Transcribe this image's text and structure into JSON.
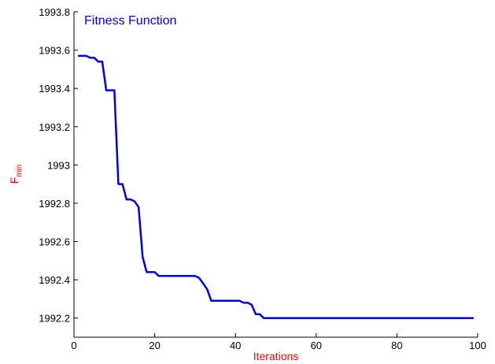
{
  "chart_data": {
    "type": "line",
    "title": "",
    "xlabel": "Iterations",
    "ylabel": {
      "main": "F",
      "subscript": "min"
    },
    "xlim": [
      0,
      100
    ],
    "ylim": [
      1992.1,
      1993.8
    ],
    "x_ticks": [
      0,
      20,
      40,
      60,
      80,
      100
    ],
    "x_tick_labels": [
      "0",
      "20",
      "40",
      "60",
      "80",
      "100"
    ],
    "y_ticks": [
      1992.2,
      1992.4,
      1992.6,
      1992.8,
      1993.0,
      1993.2,
      1993.4,
      1993.6,
      1993.8
    ],
    "y_tick_labels": [
      "1992.2",
      "1992.4",
      "1992.6",
      "1992.8",
      "1993",
      "1993.2",
      "1993.4",
      "1993.6",
      "1993.8"
    ],
    "grid": false,
    "legend_placement": "top-left",
    "series": [
      {
        "name": "Fitness Function",
        "color": "#0000ee",
        "x": [
          1,
          3,
          4,
          5,
          6,
          7,
          8,
          9,
          10,
          11,
          12,
          13,
          14,
          15,
          16,
          17,
          18,
          19,
          20,
          21,
          29,
          30,
          31,
          32,
          33,
          34,
          40,
          41,
          42,
          43,
          44,
          45,
          46,
          47,
          48,
          99
        ],
        "y": [
          1993.57,
          1993.57,
          1993.56,
          1993.56,
          1993.54,
          1993.54,
          1993.39,
          1993.39,
          1993.39,
          1992.9,
          1992.9,
          1992.82,
          1992.82,
          1992.81,
          1992.78,
          1992.52,
          1992.44,
          1992.44,
          1992.44,
          1992.42,
          1992.42,
          1992.42,
          1992.41,
          1992.38,
          1992.35,
          1992.29,
          1992.29,
          1992.29,
          1992.28,
          1992.28,
          1992.27,
          1992.22,
          1992.22,
          1992.2,
          1992.2,
          1992.2
        ]
      }
    ],
    "colors": {
      "axes": "#000000",
      "xlabel": "#ff0000",
      "ylabel": "#ff0000",
      "legend_text": "#0000ee"
    }
  }
}
